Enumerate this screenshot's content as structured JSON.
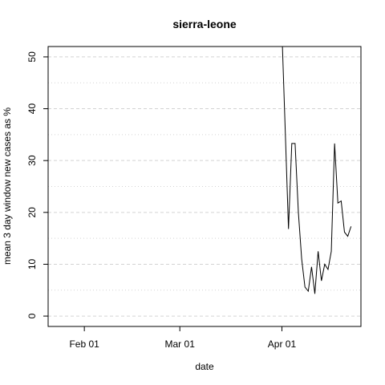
{
  "chart_data": {
    "type": "line",
    "title": "sierra-leone",
    "xlabel": "date",
    "ylabel": "mean  3  day window new cases as %",
    "x": [
      "Apr 01",
      "Apr 02",
      "Apr 03",
      "Apr 04",
      "Apr 05",
      "Apr 06",
      "Apr 07",
      "Apr 08",
      "Apr 09",
      "Apr 10",
      "Apr 11",
      "Apr 12",
      "Apr 13",
      "Apr 14",
      "Apr 15",
      "Apr 16",
      "Apr 17",
      "Apr 18",
      "Apr 19",
      "Apr 20",
      "Apr 21",
      "Apr 22"
    ],
    "series": [
      {
        "name": "sierra-leone",
        "color": "#000000",
        "values": [
          55,
          36,
          16.8,
          33.3,
          33.3,
          20,
          11,
          5.6,
          4.8,
          9.5,
          4.3,
          12.5,
          6.8,
          10,
          9,
          12.5,
          33.3,
          21.8,
          22.2,
          16.2,
          15.4,
          17.3
        ]
      }
    ],
    "xlim": [
      "Jan 21",
      "Apr 25"
    ],
    "xticks": [
      "Feb 01",
      "Mar 01",
      "Apr 01"
    ],
    "ylim": [
      -2,
      52
    ],
    "yticks": [
      0,
      10,
      20,
      30,
      40,
      50
    ],
    "grid": true,
    "minor_grid": [
      5,
      15,
      25,
      35,
      45
    ]
  }
}
